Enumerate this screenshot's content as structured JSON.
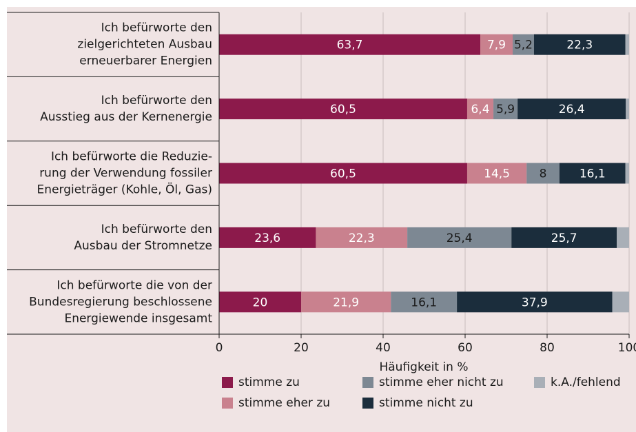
{
  "chart_data": {
    "type": "stacked_barh",
    "categories": [
      "Ich befürworte den\nzielgerichteten Ausbau\nerneuerbarer Energien",
      "Ich befürworte den\nAusstieg aus der Kernenergie",
      "Ich befürworte die Reduzie-\nrung der Verwendung fossiler\nEnergieträger (Kohle, Öl, Gas)",
      "Ich befürworte den\nAusbau der Stromnetze",
      "Ich befürworte die von der\nBundesregierung beschlossene\nEnergiewende insgesamt"
    ],
    "series": [
      {
        "name": "stimme zu",
        "color": "#8c1a4b",
        "label_color": "#ffffff",
        "values": [
          63.7,
          60.5,
          60.5,
          23.6,
          20
        ],
        "value_labels": [
          "63,7",
          "60,5",
          "60,5",
          "23,6",
          "20"
        ]
      },
      {
        "name": "stimme eher zu",
        "color": "#c9818e",
        "label_color": "#ffffff",
        "values": [
          7.9,
          6.4,
          14.5,
          22.3,
          21.9
        ],
        "value_labels": [
          "7,9",
          "6,4",
          "14,5",
          "22,3",
          "21,9"
        ]
      },
      {
        "name": "stimme eher nicht zu",
        "color": "#7d8893",
        "label_color": "#1a1a1a",
        "values": [
          5.2,
          5.9,
          8,
          25.4,
          16.1
        ],
        "value_labels": [
          "5,2",
          "5,9",
          "8",
          "25,4",
          "16,1"
        ]
      },
      {
        "name": "stimme nicht zu",
        "color": "#1b2d3c",
        "label_color": "#ffffff",
        "values": [
          22.3,
          26.4,
          16.1,
          25.7,
          37.9
        ],
        "value_labels": [
          "22,3",
          "26,4",
          "16,1",
          "25,7",
          "37,9"
        ]
      },
      {
        "name": "k.A./fehlend",
        "color": "#a9afb7",
        "values": [
          0.9,
          0.8,
          0.9,
          3.0,
          4.1
        ]
      }
    ],
    "xlabel": "Häufigkeit in %",
    "xlim": [
      0,
      100
    ],
    "xticks": [
      0,
      20,
      40,
      60,
      80,
      100
    ],
    "grid": true
  }
}
